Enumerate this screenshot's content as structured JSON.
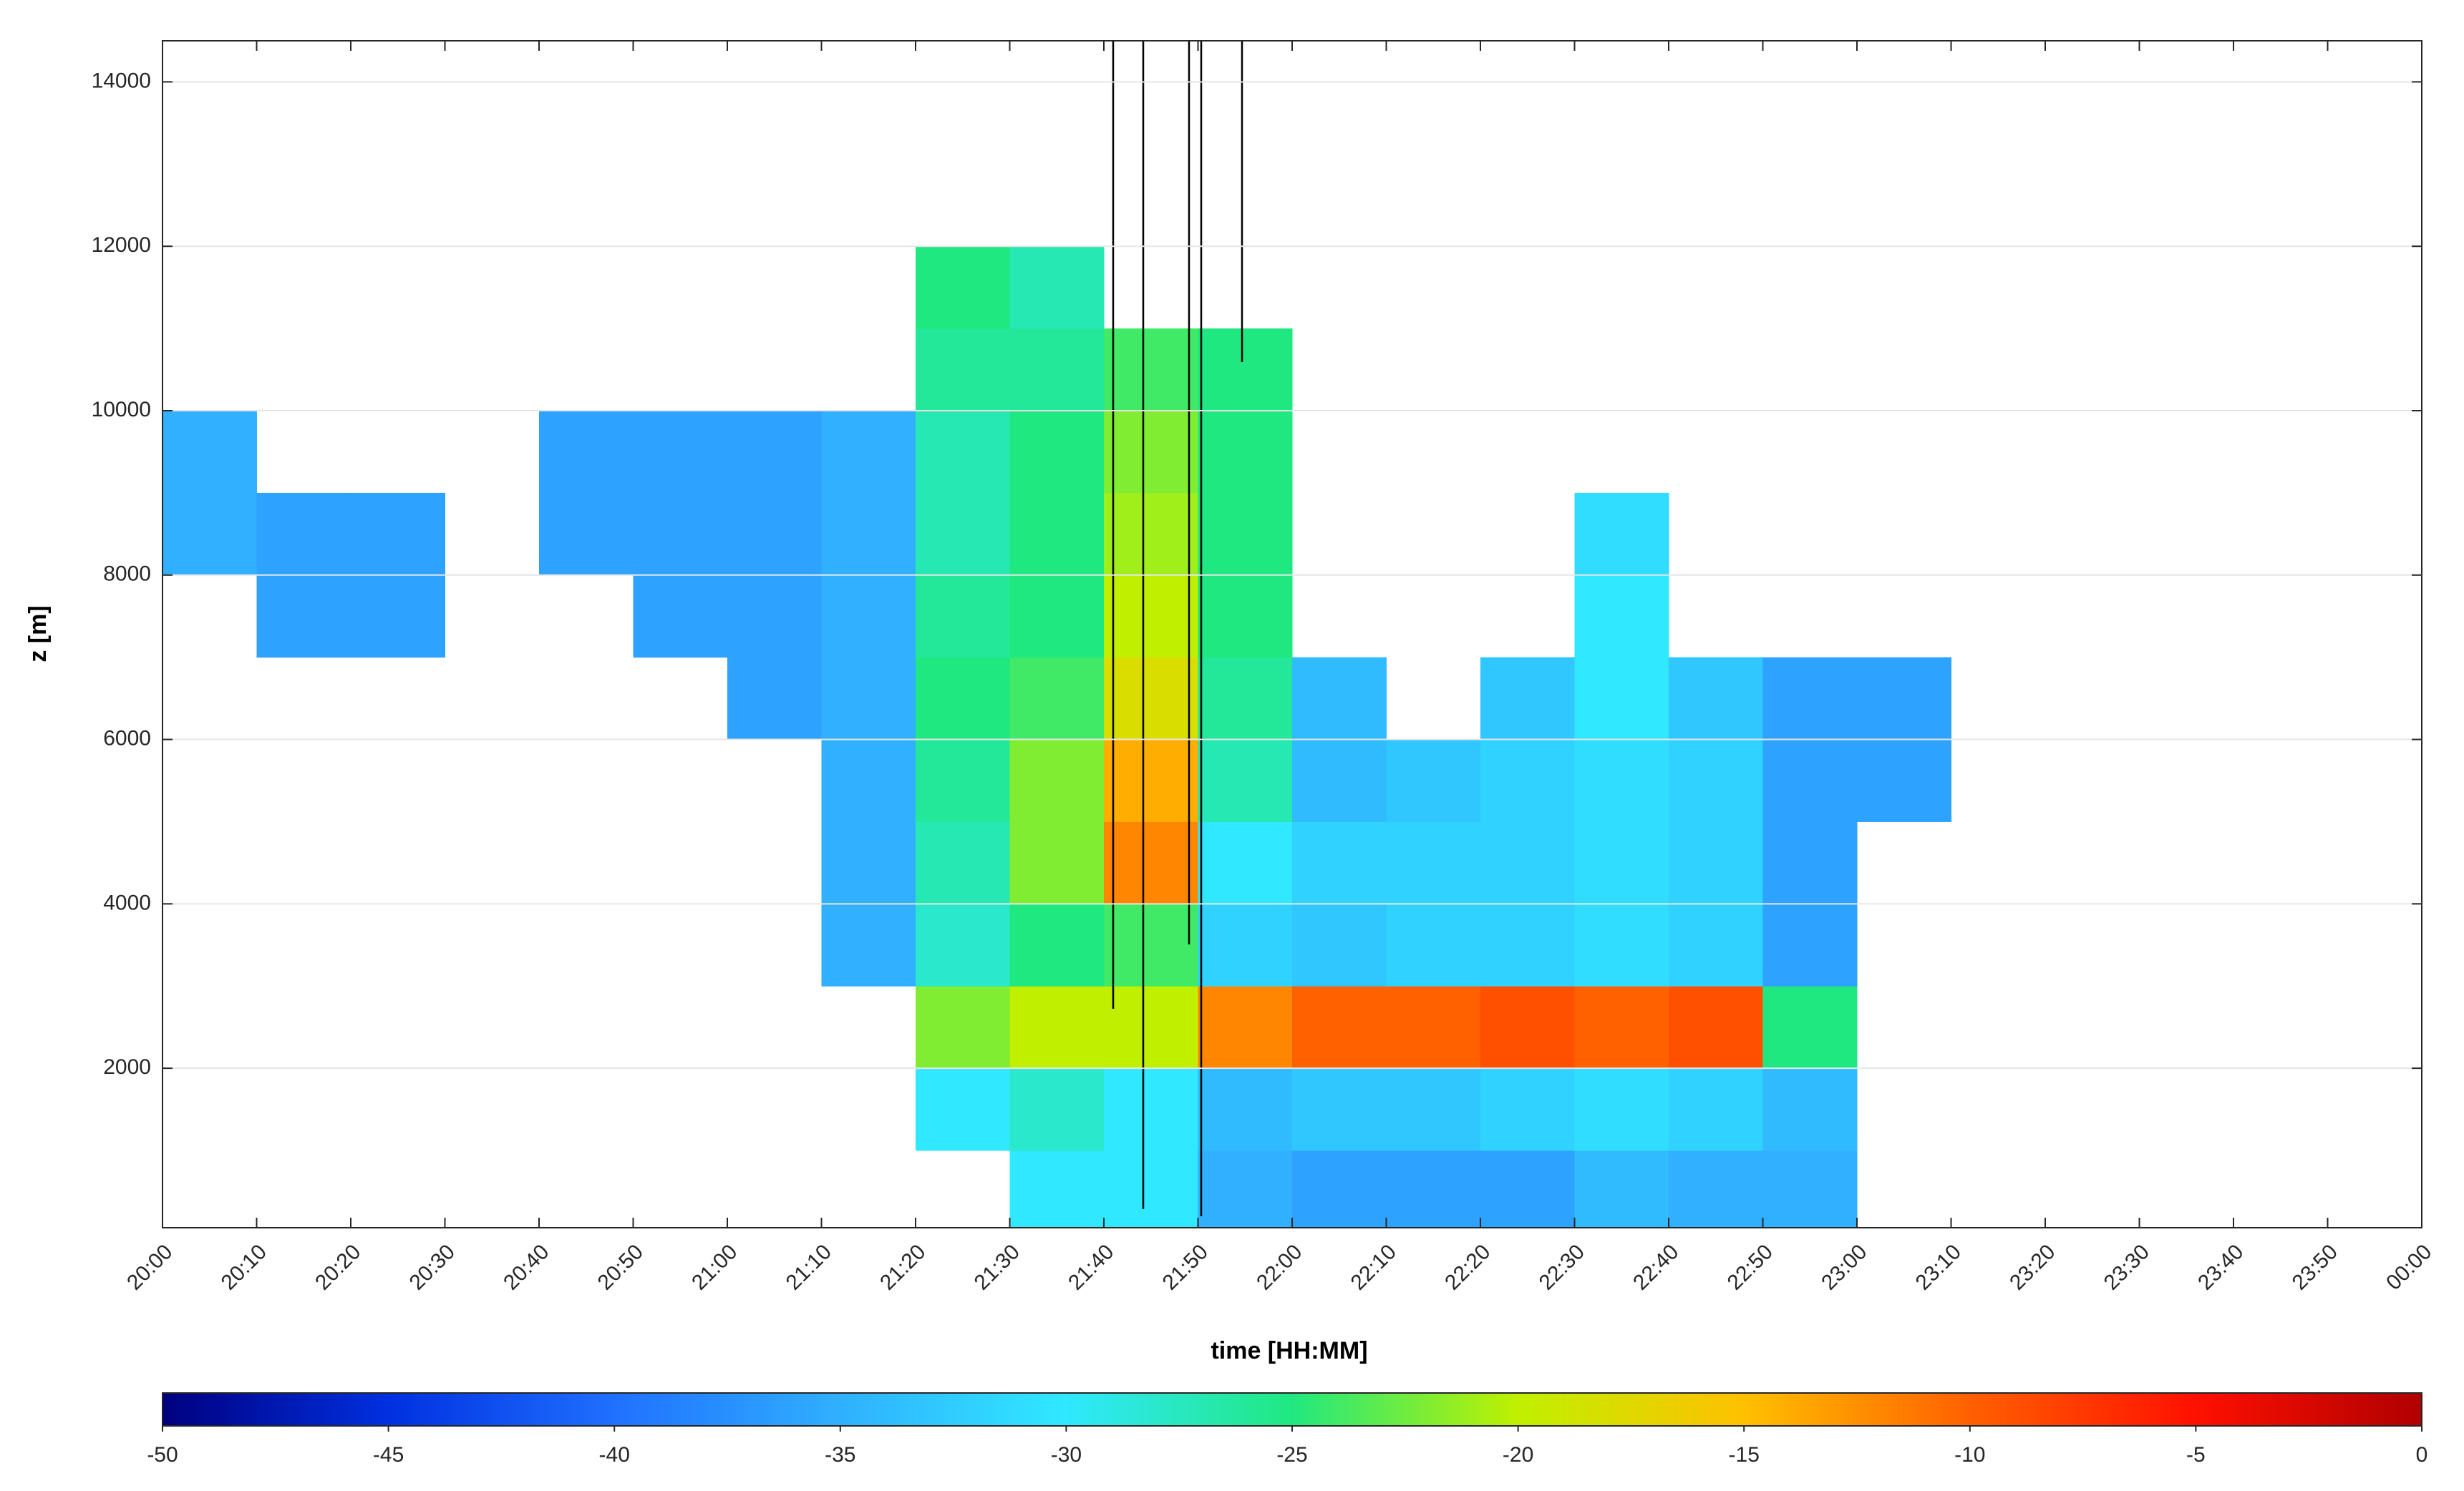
{
  "chart_data": {
    "type": "heatmap",
    "xlabel": "time [HH:MM]",
    "ylabel": "z [m]",
    "xticks": [
      "20:00",
      "20:10",
      "20:20",
      "20:30",
      "20:40",
      "20:50",
      "21:00",
      "21:10",
      "21:20",
      "21:30",
      "21:40",
      "21:50",
      "22:00",
      "22:10",
      "22:20",
      "22:30",
      "22:40",
      "22:50",
      "23:00",
      "23:10",
      "23:20",
      "23:30",
      "23:40",
      "23:50",
      "00:00"
    ],
    "ylim": [
      60,
      14500
    ],
    "yticks": [
      2000,
      4000,
      6000,
      8000,
      10000,
      12000,
      14000
    ],
    "grid": true,
    "y_bins": [
      0,
      1000,
      2000,
      3000,
      4000,
      5000,
      6000,
      7000,
      8000,
      9000,
      10000,
      11000,
      12000,
      13000,
      14000
    ],
    "z": [
      [
        null,
        null,
        null,
        null,
        null,
        null,
        null,
        null,
        null,
        -30,
        -30,
        -35,
        -36,
        -36,
        -36,
        -34,
        -35,
        -35,
        null,
        null,
        null,
        null,
        null,
        null
      ],
      [
        null,
        null,
        null,
        null,
        null,
        null,
        null,
        null,
        -30,
        -28,
        -30,
        -34,
        -33,
        -33,
        -32,
        -31,
        -32,
        -34,
        null,
        null,
        null,
        null,
        null,
        null
      ],
      [
        null,
        null,
        null,
        null,
        null,
        null,
        null,
        null,
        -22,
        -20,
        -20,
        -12,
        -10,
        -10,
        -9,
        -10,
        -9,
        -25,
        null,
        null,
        null,
        null,
        null,
        null
      ],
      [
        null,
        null,
        null,
        null,
        null,
        null,
        null,
        -35,
        -28,
        -25,
        -24,
        -32,
        -33,
        -32,
        -32,
        -31,
        -32,
        -36,
        null,
        null,
        null,
        null,
        null,
        null
      ],
      [
        null,
        null,
        null,
        null,
        null,
        null,
        null,
        -35,
        -27,
        -22,
        -12,
        -30,
        -32,
        -32,
        -32,
        -31,
        -32,
        -36,
        null,
        null,
        null,
        null,
        null,
        null
      ],
      [
        null,
        null,
        null,
        null,
        null,
        null,
        null,
        -35,
        -26,
        -22,
        -14,
        -27,
        -34,
        -33,
        -32,
        -31,
        -32,
        -36,
        -36,
        null,
        null,
        null,
        null,
        null
      ],
      [
        null,
        null,
        null,
        null,
        null,
        null,
        -36,
        -35,
        -25,
        -24,
        -18,
        -26,
        -34,
        null,
        -33,
        -30,
        -33,
        -36,
        -36,
        null,
        null,
        null,
        null,
        null
      ],
      [
        null,
        -36,
        -36,
        null,
        null,
        -36,
        -36,
        -35,
        -26,
        -25,
        -20,
        -25,
        null,
        null,
        null,
        -30,
        null,
        null,
        null,
        null,
        null,
        null,
        null,
        null
      ],
      [
        -35,
        -36,
        -36,
        null,
        -36,
        -36,
        -36,
        -35,
        -27,
        -25,
        -21,
        -25,
        null,
        null,
        null,
        -31,
        null,
        null,
        null,
        null,
        null,
        null,
        null,
        null
      ],
      [
        -35,
        null,
        null,
        null,
        -36,
        -36,
        -36,
        -35,
        -27,
        -25,
        -22,
        -25,
        null,
        null,
        null,
        null,
        null,
        null,
        null,
        null,
        null,
        null,
        null,
        null
      ],
      [
        null,
        null,
        null,
        null,
        null,
        null,
        null,
        null,
        -26,
        -26,
        -24,
        -25,
        null,
        null,
        null,
        null,
        null,
        null,
        null,
        null,
        null,
        null,
        null,
        null
      ],
      [
        null,
        null,
        null,
        null,
        null,
        null,
        null,
        null,
        -25,
        -27,
        null,
        null,
        null,
        null,
        null,
        null,
        null,
        null,
        null,
        null,
        null,
        null,
        null,
        null
      ],
      [
        null,
        null,
        null,
        null,
        null,
        null,
        null,
        null,
        null,
        null,
        null,
        null,
        null,
        null,
        null,
        null,
        null,
        null,
        null,
        null,
        null,
        null,
        null,
        null
      ],
      [
        null,
        null,
        null,
        null,
        null,
        null,
        null,
        null,
        null,
        null,
        null,
        null,
        null,
        null,
        null,
        null,
        null,
        null,
        null,
        null,
        null,
        null,
        null,
        null
      ]
    ],
    "clim": [
      -50,
      0
    ],
    "cticks": [
      -50,
      -45,
      -40,
      -35,
      -30,
      -25,
      -20,
      -15,
      -10,
      -5,
      0
    ],
    "colormap": [
      "#00007f",
      "#0030e0",
      "#2070ff",
      "#30b0ff",
      "#30e8ff",
      "#20e880",
      "#c0f000",
      "#ffc000",
      "#ff6000",
      "#ff1000",
      "#b00000"
    ]
  }
}
